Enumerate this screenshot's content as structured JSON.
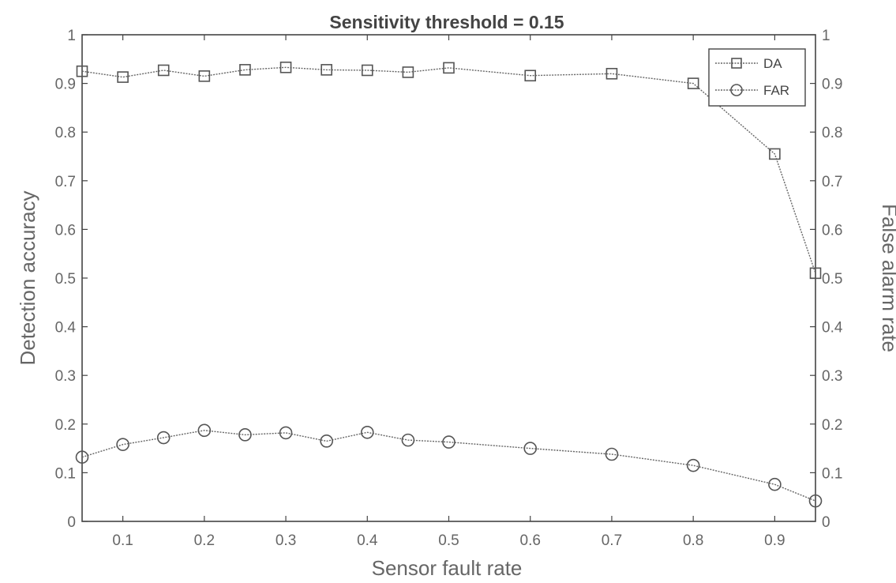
{
  "chart_data": {
    "type": "line",
    "title": "Sensitivity threshold = 0.15",
    "xlabel": "Sensor fault rate",
    "ylabel": "Detection accuracy",
    "ylabel_right": "False alarm rate",
    "xlim": [
      0.05,
      0.95
    ],
    "ylim": [
      0,
      1
    ],
    "ylim_right": [
      0,
      1
    ],
    "x_ticks": [
      "0.1",
      "0.2",
      "0.3",
      "0.4",
      "0.5",
      "0.6",
      "0.7",
      "0.8",
      "0.9"
    ],
    "y_ticks": [
      "0",
      "0.1",
      "0.2",
      "0.3",
      "0.4",
      "0.5",
      "0.6",
      "0.7",
      "0.8",
      "0.9",
      "1"
    ],
    "y_ticks_right": [
      "0",
      "0.1",
      "0.2",
      "0.3",
      "0.4",
      "0.5",
      "0.6",
      "0.7",
      "0.8",
      "0.9",
      "1"
    ],
    "grid": false,
    "legend_position": "top-right",
    "series": [
      {
        "name": "DA",
        "marker": "square",
        "x": [
          0.05,
          0.1,
          0.15,
          0.2,
          0.25,
          0.3,
          0.35,
          0.4,
          0.45,
          0.5,
          0.6,
          0.7,
          0.8,
          0.9,
          0.95
        ],
        "values": [
          0.925,
          0.913,
          0.927,
          0.915,
          0.928,
          0.933,
          0.928,
          0.927,
          0.923,
          0.932,
          0.916,
          0.92,
          0.9,
          0.755,
          0.51
        ]
      },
      {
        "name": "FAR",
        "marker": "circle",
        "x": [
          0.05,
          0.1,
          0.15,
          0.2,
          0.25,
          0.3,
          0.35,
          0.4,
          0.45,
          0.5,
          0.6,
          0.7,
          0.8,
          0.9,
          0.95
        ],
        "values": [
          0.132,
          0.158,
          0.172,
          0.187,
          0.178,
          0.182,
          0.165,
          0.183,
          0.167,
          0.163,
          0.15,
          0.138,
          0.115,
          0.076,
          0.042
        ]
      }
    ]
  }
}
